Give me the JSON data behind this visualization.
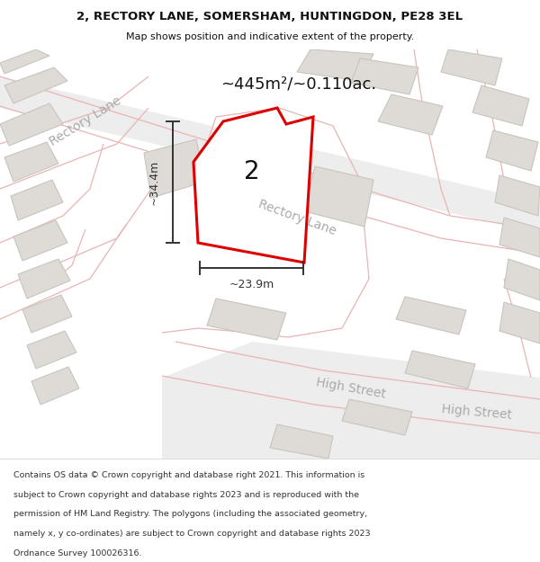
{
  "title_line1": "2, RECTORY LANE, SOMERSHAM, HUNTINGDON, PE28 3EL",
  "title_line2": "Map shows position and indicative extent of the property.",
  "area_text": "~445m²/~0.110ac.",
  "width_label": "~23.9m",
  "height_label": "~34.4m",
  "property_number": "2",
  "footer_text": "Contains OS data © Crown copyright and database right 2021. This information is subject to Crown copyright and database rights 2023 and is reproduced with the permission of HM Land Registry. The polygons (including the associated geometry, namely x, y co-ordinates) are subject to Crown copyright and database rights 2023 Ordnance Survey 100026316.",
  "map_bg": "#f7f6f4",
  "road_line_color": "#e8b4b4",
  "road_fill_color": "#eeeded",
  "building_fill": "#dedbd7",
  "building_stroke": "#c8c4be",
  "property_fill": "#ffffff",
  "property_stroke": "#dd0000",
  "dim_color": "#333333",
  "text_road_color": "#aaaaaa",
  "text_label_color": "#222222",
  "title_fontsize": 9.5,
  "subtitle_fontsize": 8.0,
  "area_fontsize": 13,
  "dim_fontsize": 9,
  "road_label_fontsize": 10,
  "number_fontsize": 20
}
